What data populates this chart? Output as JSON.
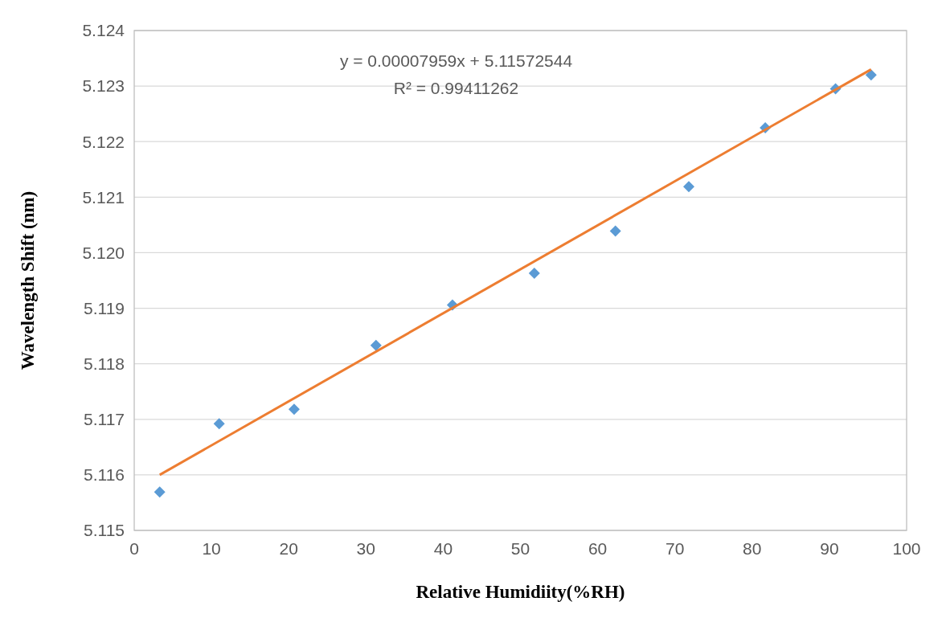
{
  "chart_data": {
    "type": "scatter",
    "xlabel": "Relative Humidiity(%RH)",
    "ylabel": "Wavelength Shift (nm)",
    "annotations": [
      "y = 0.00007959x + 5.11572544",
      "R² = 0.99411262"
    ],
    "xlim": [
      0,
      100
    ],
    "xticks": [
      0,
      10,
      20,
      30,
      40,
      50,
      60,
      70,
      80,
      90,
      100
    ],
    "ylim": [
      5.115,
      5.124
    ],
    "yticks": [
      5.115,
      5.116,
      5.117,
      5.118,
      5.119,
      {
        "value": 5.12,
        "label": "5.120"
      },
      5.121,
      5.122,
      5.123,
      5.124
    ],
    "grid": "y",
    "marker": "diamond",
    "series": [
      {
        "color": "#5b9bd5",
        "x": [
          3.3,
          11.0,
          20.7,
          31.3,
          41.2,
          51.8,
          62.3,
          71.8,
          81.7,
          90.8,
          95.4
        ],
        "values": [
          5.11569,
          5.11692,
          5.11718,
          5.11833,
          5.11906,
          5.11963,
          5.12039,
          5.12119,
          5.12225,
          5.12295,
          5.1232
        ]
      },
      {
        "type": "line",
        "color": "#ed7d31",
        "line_style": "solid",
        "marker": "none",
        "x": [
          3.3,
          95.4
        ],
        "values": [
          5.116,
          5.1233
        ]
      }
    ]
  }
}
